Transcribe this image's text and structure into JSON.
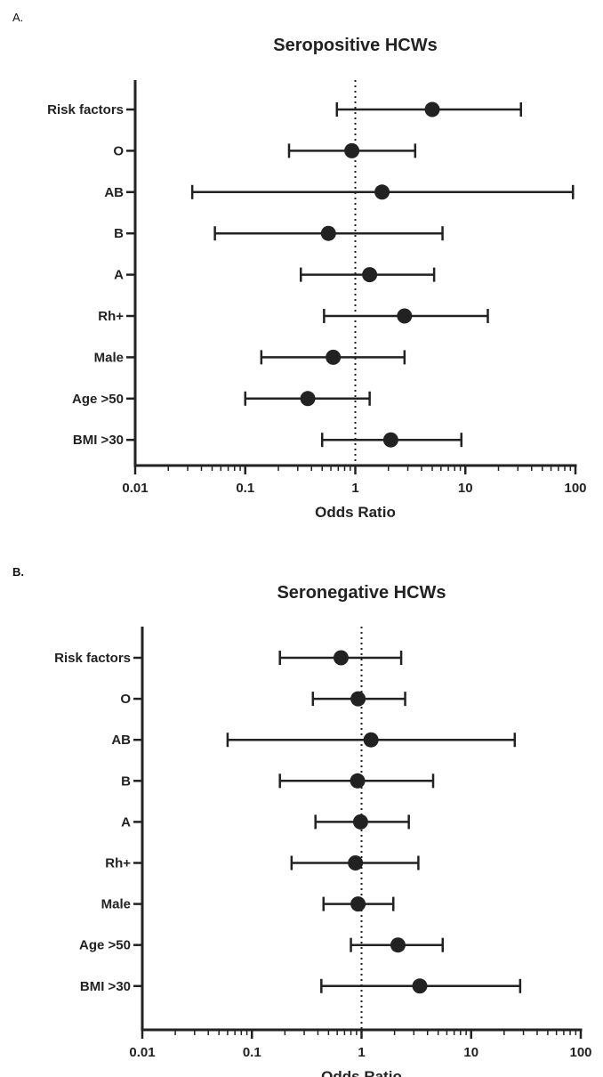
{
  "chart_data": [
    {
      "panel": "A.",
      "type": "scatter",
      "title": "Seropositive HCWs",
      "xlabel": "Odds Ratio",
      "xscale": "log",
      "xlim": [
        0.01,
        100
      ],
      "xticks": [
        "0.01",
        "0.1",
        "1",
        "10",
        "100"
      ],
      "reference_line": 1,
      "categories": [
        "Risk factors",
        "O",
        "AB",
        "B",
        "A",
        "Rh+",
        "Male",
        "Age >50",
        "BMI >30"
      ],
      "series": [
        {
          "odds_ratio": [
            5.0,
            0.93,
            1.75,
            0.57,
            1.35,
            2.8,
            0.63,
            0.37,
            2.1
          ],
          "ci_low": [
            0.68,
            0.25,
            0.033,
            0.053,
            0.32,
            0.52,
            0.14,
            0.1,
            0.5
          ],
          "ci_high": [
            32,
            3.5,
            95,
            6.2,
            5.2,
            16,
            2.8,
            1.35,
            9.2
          ]
        }
      ]
    },
    {
      "panel": "B.",
      "type": "scatter",
      "title": "Seronegative HCWs",
      "xlabel": "Odds Ratio",
      "xscale": "log",
      "xlim": [
        0.01,
        100
      ],
      "xticks": [
        "0.01",
        "0.1",
        "1",
        "10",
        "100"
      ],
      "reference_line": 1,
      "categories": [
        "Risk factors",
        "O",
        "AB",
        "B",
        "A",
        "Rh+",
        "Male",
        "Age >50",
        "BMI >30"
      ],
      "series": [
        {
          "odds_ratio": [
            0.65,
            0.93,
            1.22,
            0.92,
            0.98,
            0.88,
            0.93,
            2.15,
            3.4
          ],
          "ci_low": [
            0.18,
            0.36,
            0.06,
            0.18,
            0.38,
            0.23,
            0.45,
            0.8,
            0.43
          ],
          "ci_high": [
            2.3,
            2.5,
            25,
            4.5,
            2.7,
            3.3,
            1.95,
            5.5,
            28
          ]
        }
      ]
    }
  ]
}
